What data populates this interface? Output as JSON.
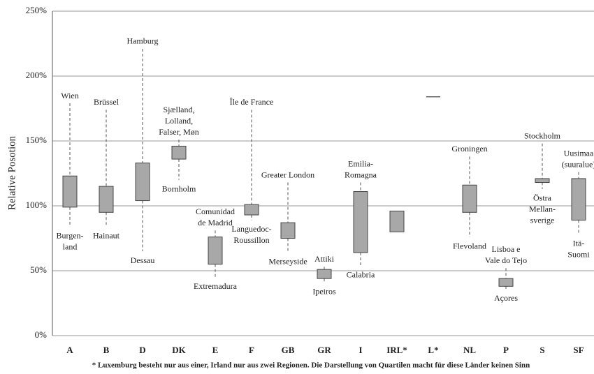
{
  "chart_data": {
    "type": "box",
    "y_label": "Relative Posotion",
    "footnote": "* Luxemburg besteht nur aus einer, Irland nur aus zwei Regionen. Die Darstellung von Quartilen macht für diese Länder keinen Sinn",
    "ylim": [
      0,
      250
    ],
    "yticks": [
      {
        "value": 0,
        "label": "0%"
      },
      {
        "value": 50,
        "label": "50%"
      },
      {
        "value": 100,
        "label": "100%"
      },
      {
        "value": 150,
        "label": "150%"
      },
      {
        "value": 200,
        "label": "200%"
      },
      {
        "value": 250,
        "label": "250%"
      }
    ],
    "grid": true,
    "color": "#a8a8a8",
    "categories": [
      "A",
      "B",
      "D",
      "DK",
      "E",
      "F",
      "GB",
      "GR",
      "I",
      "IRL*",
      "L*",
      "NL",
      "P",
      "S",
      "SF"
    ],
    "max": [
      179,
      174,
      221,
      151,
      81,
      174,
      118,
      53,
      118,
      null,
      null,
      138,
      52,
      148,
      126
    ],
    "q3": [
      123,
      115,
      133,
      146,
      76,
      101,
      87,
      51,
      111,
      96,
      null,
      116,
      44,
      121,
      121
    ],
    "q1": [
      99,
      95,
      104,
      136,
      55,
      93,
      75,
      44,
      64,
      80,
      null,
      95,
      38,
      118,
      89
    ],
    "min": [
      84,
      84,
      65,
      120,
      45,
      89,
      64,
      41,
      54,
      null,
      null,
      76,
      36,
      113,
      78
    ],
    "values": [
      null,
      null,
      null,
      null,
      null,
      null,
      null,
      null,
      null,
      null,
      184,
      null,
      null,
      null,
      null
    ],
    "top_labels": [
      [
        "Wien"
      ],
      [
        "Brüssel"
      ],
      [
        "Hamburg"
      ],
      [
        "Sjælland,",
        "Lolland,",
        "Falser, Møn"
      ],
      [
        "Comunidad",
        "de Madrid"
      ],
      [
        "Île de France"
      ],
      [
        "Greater London"
      ],
      [
        "Attiki"
      ],
      [
        "Emilia-",
        "Romagna"
      ],
      null,
      null,
      [
        "Groningen"
      ],
      [
        "Lisboa e",
        "Vale do Tejo"
      ],
      [
        "Stockholm"
      ],
      [
        "Uusimaa",
        "(suuralue)"
      ]
    ],
    "bottom_labels": [
      [
        "Burgen-",
        "land"
      ],
      [
        "Hainaut"
      ],
      [
        "Dessau"
      ],
      [
        "Bornholm"
      ],
      [
        "Extremadura"
      ],
      [
        "Languedoc-",
        "Roussillon"
      ],
      [
        "Merseyside"
      ],
      [
        "Ipeiros"
      ],
      [
        "Calabria"
      ],
      null,
      null,
      [
        "Flevoland"
      ],
      [
        "Açores"
      ],
      [
        "Östra",
        "Mellan-",
        "sverige"
      ],
      [
        "Itä-",
        "Suomi"
      ]
    ]
  }
}
